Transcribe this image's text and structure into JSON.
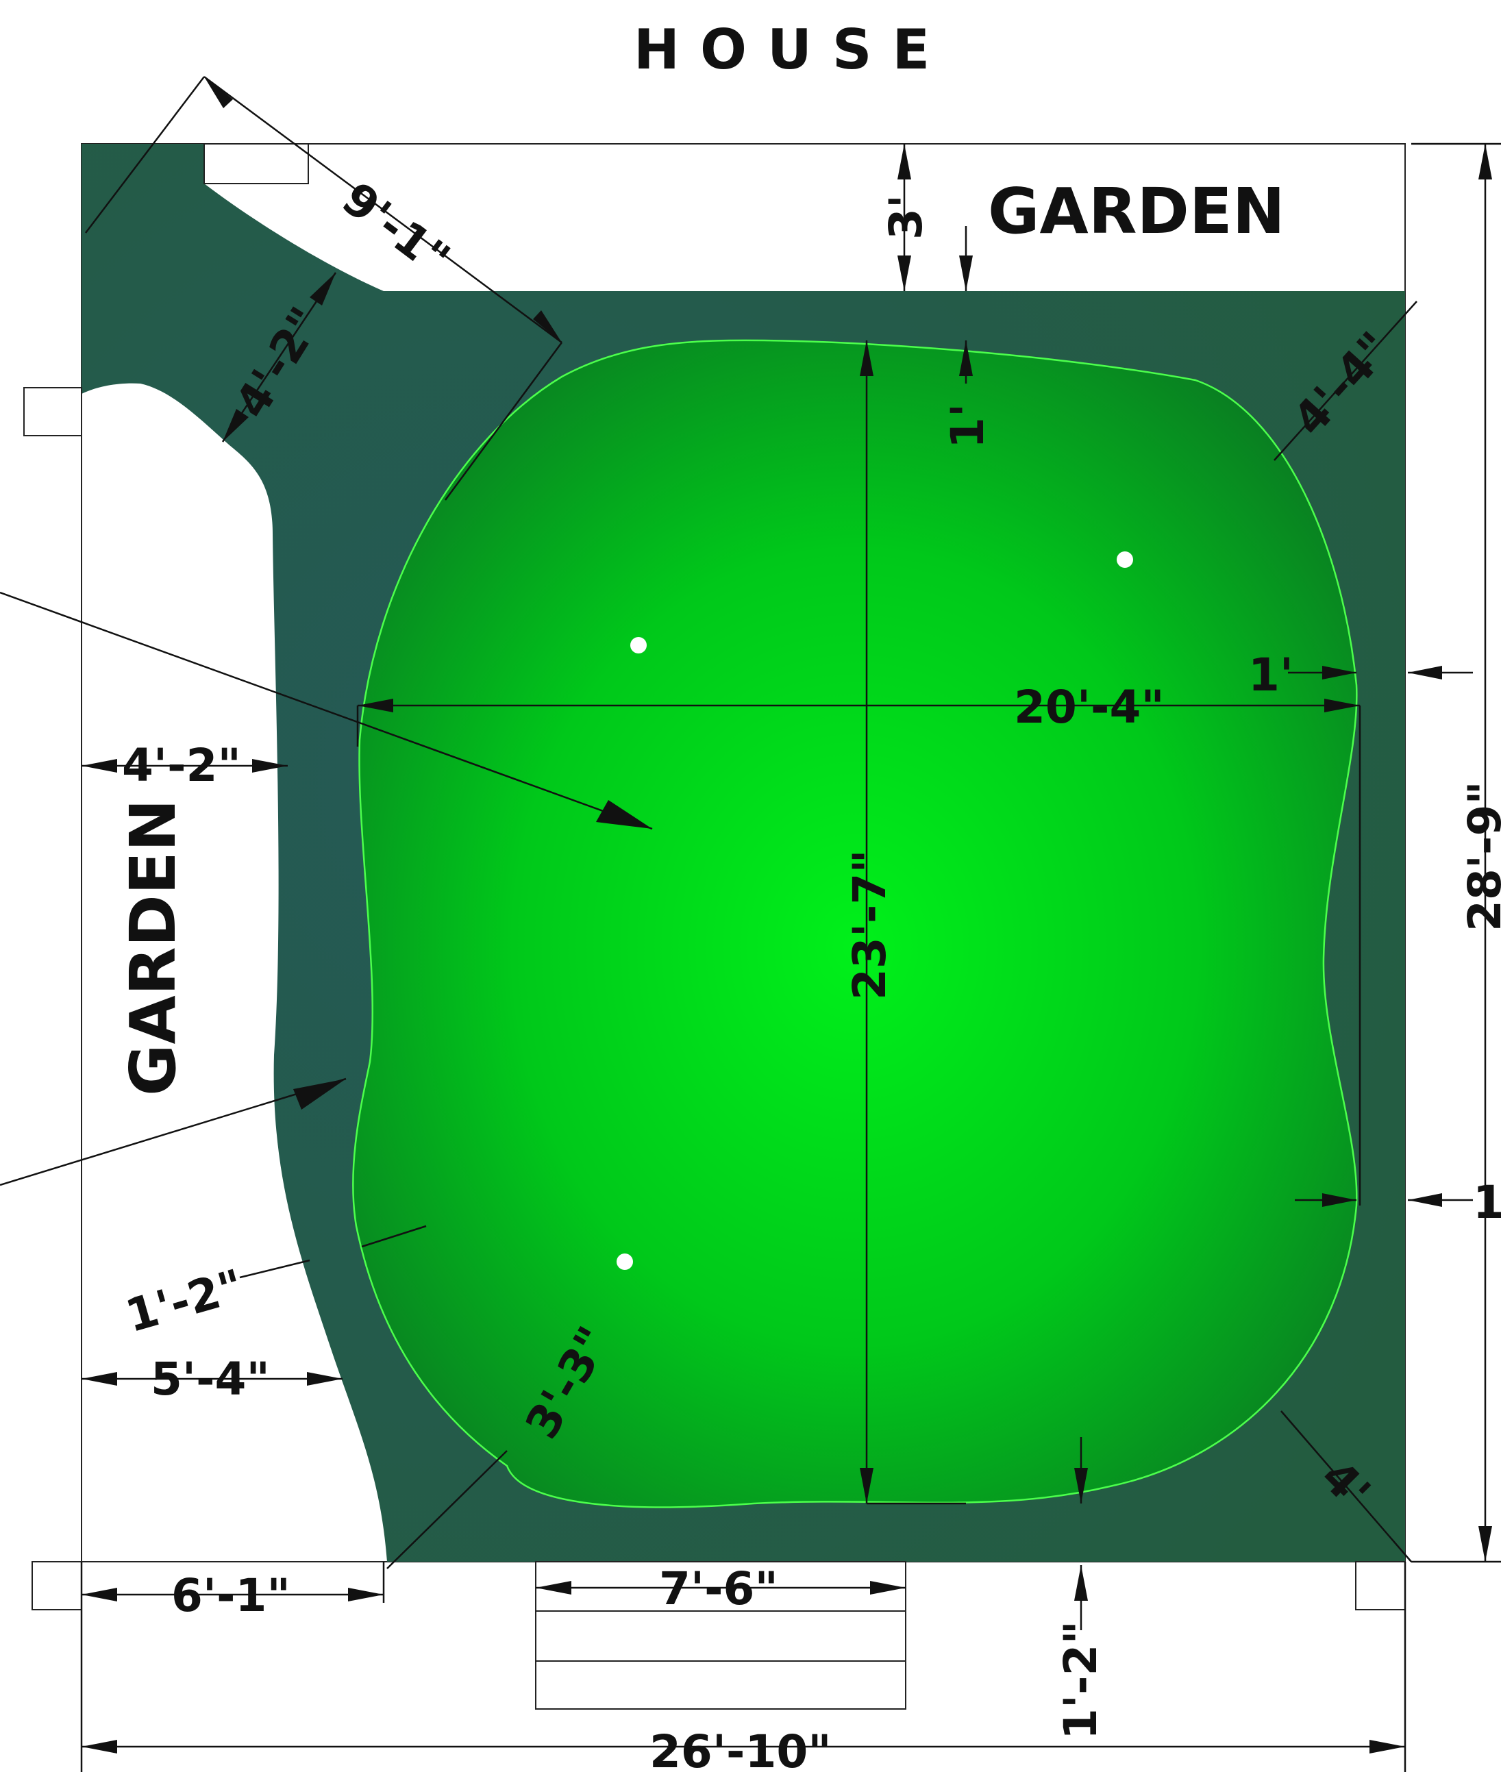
{
  "labels": {
    "house": "HOUSE",
    "garden_top": "GARDEN",
    "garden_left": "GARDEN"
  },
  "dimensions": {
    "path_diag": "9'-1\"",
    "path_width_top": "4'-2\"",
    "top_gap": "3'",
    "green_top_gap": "1'",
    "corner_top_right": "4'-4\"",
    "green_width": "20'-4\"",
    "green_length": "23'-7\"",
    "right_gap_upper": "1'",
    "right_gap_lower": "1",
    "left_width_mid": "4'-2\"",
    "left_gap_lower": "1'-2\"",
    "left_width_low": "5'-4\"",
    "corner_bottom_left": "3'-3\"",
    "corner_bottom_right": "4'",
    "bottom_left": "6'-1\"",
    "steps_width": "7'-6\"",
    "bottom_gap": "1'-2\"",
    "total_width": "26'-10\"",
    "total_height": "28'-9\""
  },
  "colors": {
    "turf_dark": "#235a46",
    "green_light": "#00f01a",
    "green_dark": "#0a7a22",
    "outline": "#4cff4c"
  }
}
